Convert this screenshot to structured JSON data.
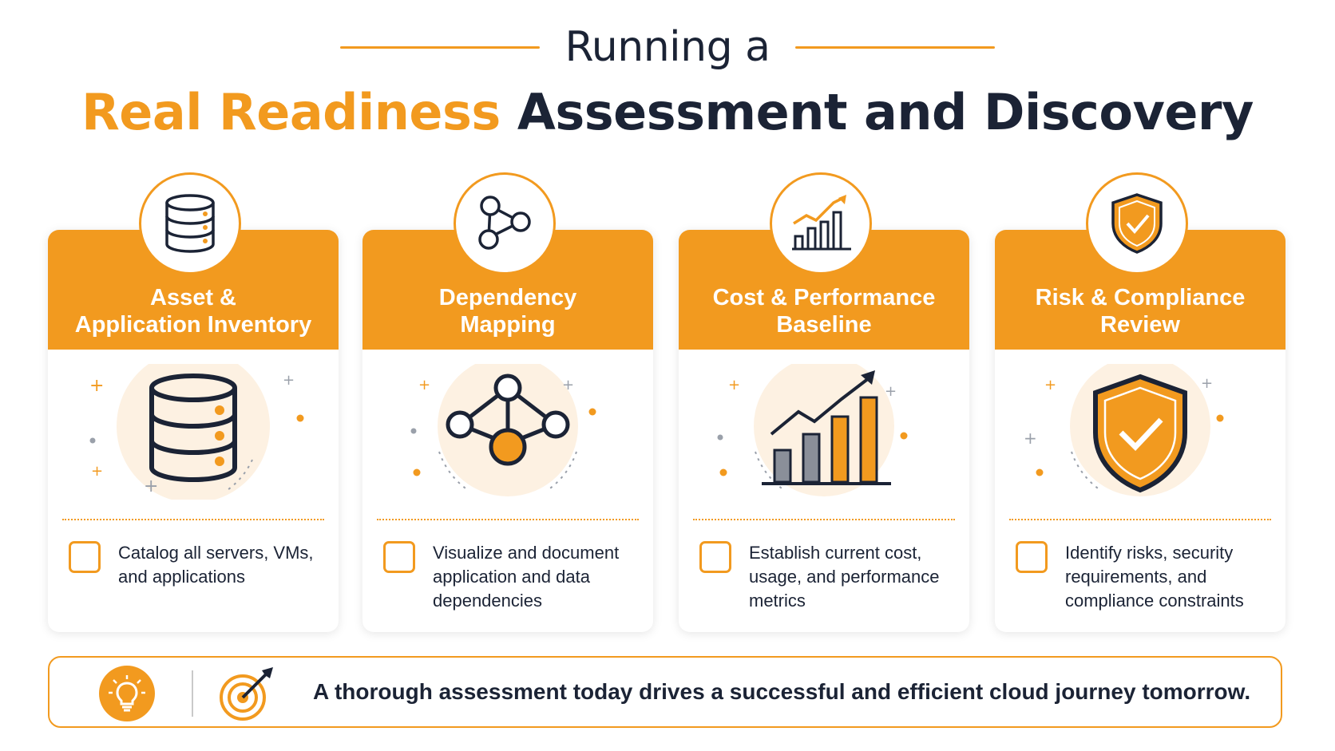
{
  "header": {
    "line1": "Running a",
    "line2_accent": "Real Readiness",
    "line2_dark": "Assessment and Discovery"
  },
  "cards": [
    {
      "title_l1": "Asset &",
      "title_l2": "Application Inventory",
      "icon": "database-icon",
      "desc": "Catalog all servers, VMs, and applications"
    },
    {
      "title_l1": "Dependency",
      "title_l2": "Mapping",
      "icon": "network-graph-icon",
      "desc": "Visualize and document application and data dependencies"
    },
    {
      "title_l1": "Cost & Performance",
      "title_l2": "Baseline",
      "icon": "bar-chart-trend-icon",
      "desc": "Establish current cost, usage, and performance metrics"
    },
    {
      "title_l1": "Risk & Compliance",
      "title_l2": "Review",
      "icon": "shield-check-icon",
      "desc": "Identify risks, security requirements, and compliance constraints"
    }
  ],
  "footer": {
    "text": "A thorough assessment today drives a successful and efficient cloud journey tomorrow.",
    "icons": [
      "lightbulb-icon",
      "target-icon"
    ]
  },
  "colors": {
    "accent": "#f29a1f",
    "dark": "#1b2335",
    "light_orange": "#fdf1e2"
  }
}
